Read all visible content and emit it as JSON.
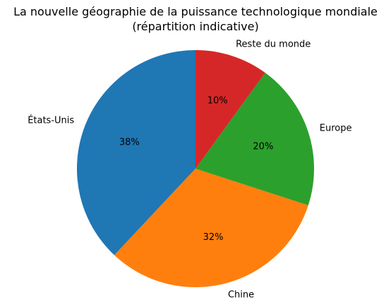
{
  "chart_data": {
    "type": "pie",
    "title": "La nouvelle géographie de la puissance technologique mondiale\n(répartition indicative)",
    "categories": [
      "États-Unis",
      "Chine",
      "Europe",
      "Reste du monde"
    ],
    "values": [
      38,
      32,
      20,
      10
    ],
    "value_labels": [
      "38%",
      "32%",
      "20%",
      "10%"
    ],
    "colors": [
      "#1f77b4",
      "#ff7f0e",
      "#2ca02c",
      "#d62728"
    ]
  }
}
